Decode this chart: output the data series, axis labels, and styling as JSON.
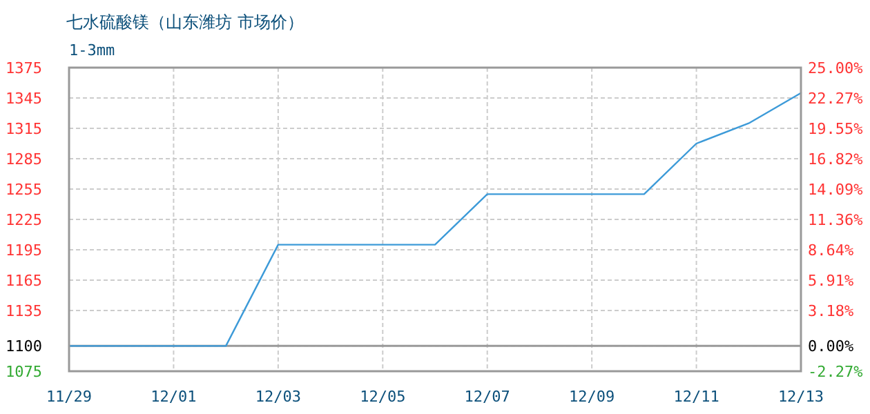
{
  "chart_data": {
    "type": "line",
    "title": "七水硫酸镁（山东潍坊 市场价）",
    "subtitle": "1-3mm",
    "x": [
      "--11-29",
      "--11-30",
      "--12-01",
      "--12-02",
      "--12-03",
      "--12-04",
      "--12-05",
      "--12-06",
      "--12-07",
      "--12-08",
      "--12-09",
      "--12-10",
      "--12-11",
      "--12-12",
      "--12-13"
    ],
    "series": [
      {
        "color": "#3c9ad8",
        "values": [
          1100,
          1100,
          1100,
          1100,
          1200,
          1200,
          1200,
          1200,
          1250,
          1250,
          1250,
          1250,
          1300,
          1320,
          1350
        ]
      }
    ],
    "xlim": [
      "--11-29",
      "--12-13"
    ],
    "xticks": [
      {
        "value": "--11-29",
        "label": "11/29"
      },
      {
        "value": "--12-01",
        "label": "12/01"
      },
      {
        "value": "--12-03",
        "label": "12/03"
      },
      {
        "value": "--12-05",
        "label": "12/05"
      },
      {
        "value": "--12-07",
        "label": "12/07"
      },
      {
        "value": "--12-09",
        "label": "12/09"
      },
      {
        "value": "--12-11",
        "label": "12/11"
      },
      {
        "value": "--12-13",
        "label": "12/13"
      }
    ],
    "ylim": [
      1075,
      1375
    ],
    "yticks": [
      1075,
      1100,
      1135,
      1165,
      1195,
      1225,
      1255,
      1285,
      1315,
      1345,
      1375
    ],
    "y2lim": [
      -2.27,
      25
    ],
    "y2ticks": [
      {
        "value": -2.27,
        "label": "-2.27%"
      },
      {
        "value": 0,
        "label": "0.00%"
      },
      {
        "value": 3.18,
        "label": "3.18%"
      },
      {
        "value": 5.91,
        "label": "5.91%"
      },
      {
        "value": 8.64,
        "label": "8.64%"
      },
      {
        "value": 11.36,
        "label": "11.36%"
      },
      {
        "value": 14.09,
        "label": "14.09%"
      },
      {
        "value": 16.82,
        "label": "16.82%"
      },
      {
        "value": 19.55,
        "label": "19.55%"
      },
      {
        "value": 22.27,
        "label": "22.27%"
      },
      {
        "value": 25,
        "label": "25.00%"
      }
    ],
    "ref_lines": [
      {
        "axis": "y",
        "value": 1100,
        "color": "#999999",
        "line_style": "solid"
      }
    ],
    "grid": true,
    "marker": "none",
    "line_style": "solid"
  }
}
